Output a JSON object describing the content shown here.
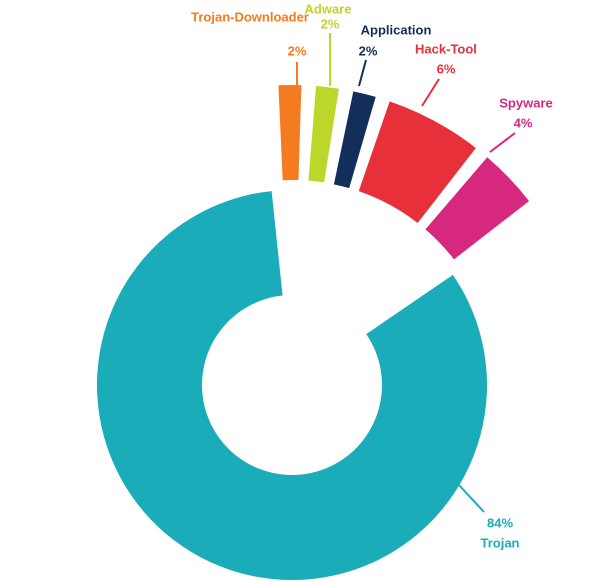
{
  "chart_data": {
    "type": "donut",
    "categories": [
      "Trojan-Downloader",
      "Adware",
      "Application",
      "Hack-Tool",
      "Spyware",
      "Trojan"
    ],
    "values": [
      2,
      2,
      2,
      6,
      4,
      84
    ],
    "value_labels": [
      "2%",
      "2%",
      "2%",
      "6%",
      "4%",
      "84%"
    ],
    "colors": [
      "#f47b20",
      "#bdd62a",
      "#132e5b",
      "#e8303a",
      "#d6287f",
      "#1aacb8"
    ]
  }
}
